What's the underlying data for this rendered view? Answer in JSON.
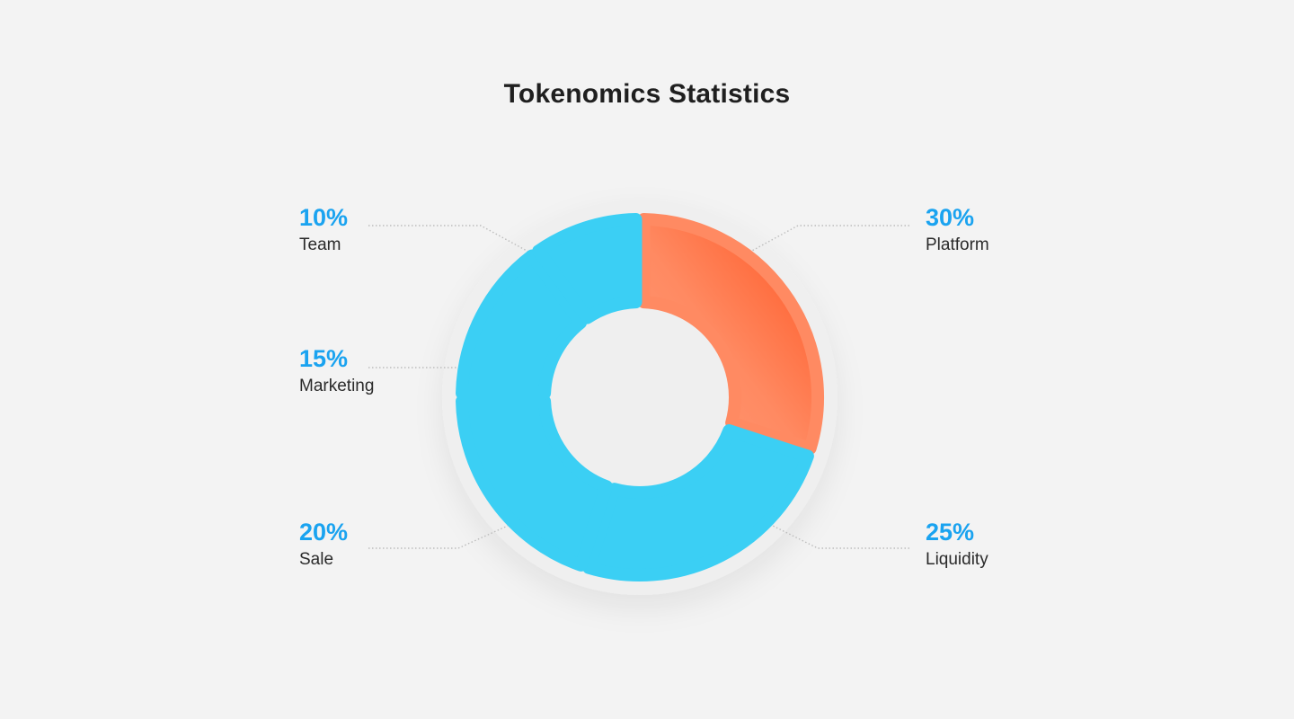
{
  "title": "Tokenomics Statistics",
  "colors": {
    "background": "#f3f3f3",
    "ring": "#efefef",
    "segment_blue": "#3bcff4",
    "segment_orange_light": "#ff9a76",
    "segment_orange_dark": "#ff5a24",
    "percent_text": "#1aa3f0",
    "label_text": "#2a2a2a",
    "leader_line": "#bdbdbd"
  },
  "chart_data": {
    "type": "pie",
    "title": "Tokenomics Statistics",
    "categories": [
      "Platform",
      "Liquidity",
      "Sale",
      "Marketing",
      "Team"
    ],
    "values": [
      30,
      25,
      20,
      15,
      10
    ],
    "labels": [
      "30%",
      "25%",
      "20%",
      "15%",
      "10%"
    ],
    "highlighted": "Platform",
    "style": "donut"
  }
}
